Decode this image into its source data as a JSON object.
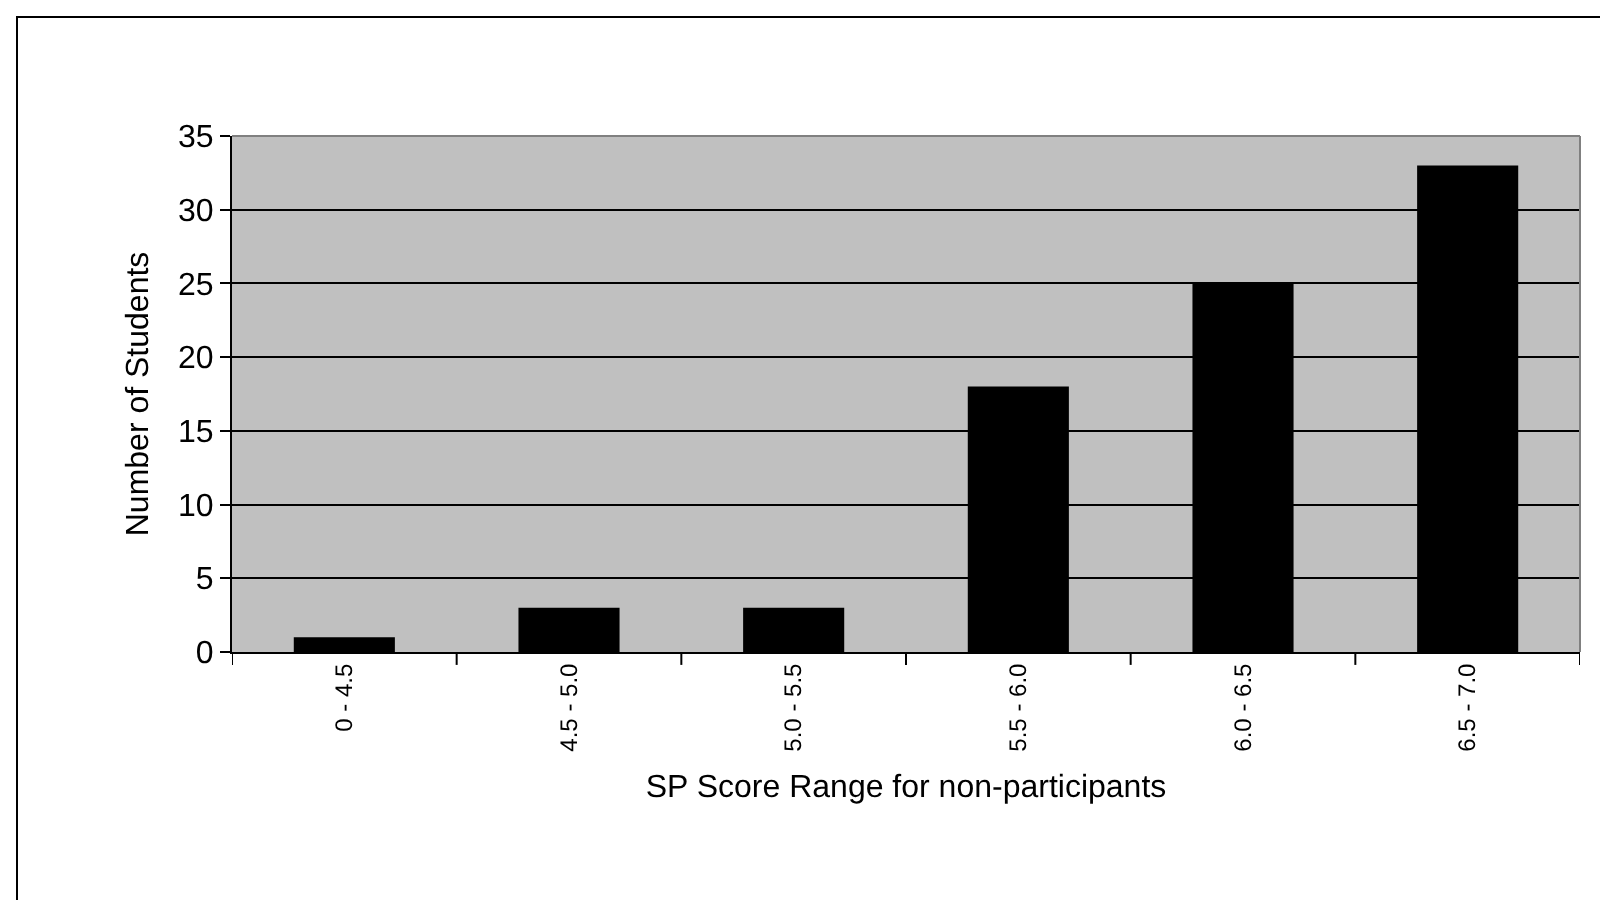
{
  "chart_data": {
    "type": "bar",
    "xlabel": "SP Score Range for non-participants",
    "ylabel": "Number of Students",
    "categories": [
      "0 - 4.5",
      "4.5 - 5.0",
      "5.0 - 5.5",
      "5.5 - 6.0",
      "6.0 - 6.5",
      "6.5 - 7.0"
    ],
    "values": [
      1,
      3,
      3,
      18,
      25,
      33
    ],
    "color": "#000000",
    "ylim": [
      0,
      35
    ],
    "yticks": [
      0,
      5,
      10,
      15,
      20,
      25,
      30,
      35
    ],
    "grid": "y",
    "legend": false
  }
}
